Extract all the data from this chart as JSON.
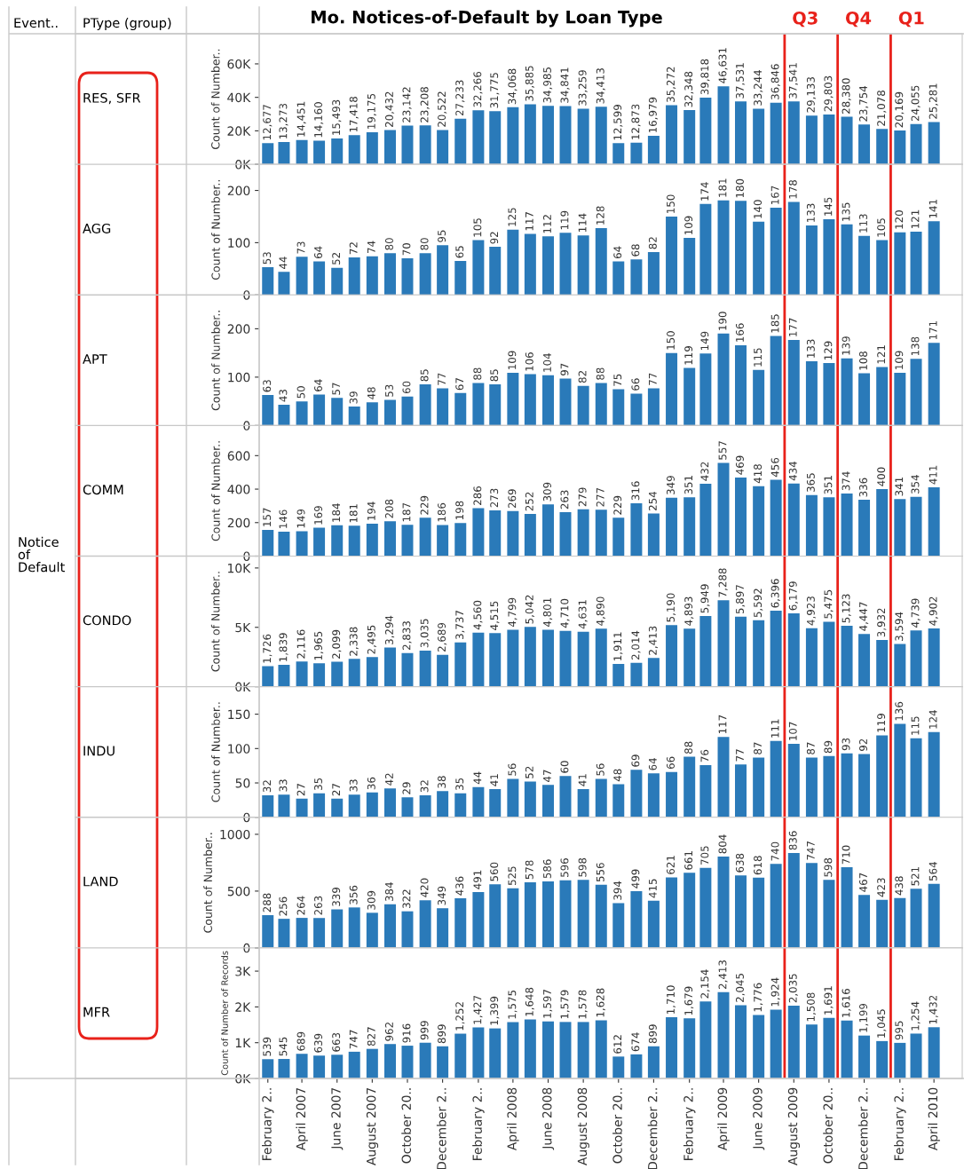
{
  "chart_data": [
    {
      "type": "bar",
      "title": "Mo. Notices-of-Default by Loan Type",
      "ylabel": "Count of Number..",
      "annotations": [
        "RES, SFR",
        "Event..",
        "PType (group)",
        "Notice of Default"
      ],
      "x": [
        "2007-02",
        "2007-03",
        "2007-04",
        "2007-05",
        "2007-06",
        "2007-07",
        "2007-08",
        "2007-09",
        "2007-10",
        "2007-11",
        "2007-12",
        "2008-01",
        "2008-02",
        "2008-03",
        "2008-04",
        "2008-05",
        "2008-06",
        "2008-07",
        "2008-08",
        "2008-09",
        "2008-10",
        "2008-11",
        "2008-12",
        "2009-01",
        "2009-02",
        "2009-03",
        "2009-04",
        "2009-05",
        "2009-06",
        "2009-07",
        "2009-08",
        "2009-09",
        "2009-10",
        "2009-11",
        "2009-12",
        "2010-01",
        "2010-02",
        "2010-03",
        "2010-04"
      ],
      "values": [
        12677,
        13273,
        14451,
        14160,
        15493,
        17418,
        19175,
        20432,
        23142,
        23208,
        20522,
        27233,
        32266,
        31775,
        34068,
        35885,
        34985,
        34841,
        33259,
        34413,
        12599,
        12873,
        16979,
        35272,
        32348,
        39818,
        46631,
        37531,
        33244,
        36846,
        37541,
        29133,
        29803,
        28380,
        23754,
        21078,
        20169,
        24055,
        25281
      ],
      "value_labels": [
        "12,677",
        "13,273",
        "14,451",
        "14,160",
        "15,493",
        "17,418",
        "19,175",
        "20,432",
        "23,142",
        "23,208",
        "20,522",
        "27,233",
        "32,266",
        "31,775",
        "34,068",
        "35,885",
        "34,985",
        "34,841",
        "33,259",
        "34,413",
        "12,599",
        "12,873",
        "16,979",
        "35,272",
        "32,348",
        "39,818",
        "46,631",
        "37,531",
        "33,244",
        "36,846",
        "37,541",
        "29,133",
        "29,803",
        "28,380",
        "23,754",
        "21,078",
        "20,169",
        "24,055",
        "25,281"
      ],
      "color": "#2a7ab9",
      "data_labels": true,
      "xlim": [
        "2007-01-17",
        "2010-05-20"
      ],
      "ylim": [
        0,
        78000
      ],
      "yticks": [
        {
          "value": 0,
          "label": "0K"
        },
        {
          "value": 20000,
          "label": "20K"
        },
        {
          "value": 40000,
          "label": "40K"
        },
        {
          "value": 60000,
          "label": "60K"
        }
      ],
      "tick_labels": "y",
      "ref_lines": [
        {
          "axis": "x",
          "value": "2009-07-16",
          "label": "Q3",
          "color": "#e8211a"
        },
        {
          "axis": "x",
          "value": "2009-10-16",
          "label": "Q4",
          "color": "#e8211a"
        },
        {
          "axis": "x",
          "value": "2010-01-16",
          "label": "Q1",
          "color": "#e8211a"
        }
      ]
    },
    {
      "type": "bar",
      "annotations": [
        "AGG"
      ],
      "ylabel": "Count of Number..",
      "x": [
        "2007-02",
        "2007-03",
        "2007-04",
        "2007-05",
        "2007-06",
        "2007-07",
        "2007-08",
        "2007-09",
        "2007-10",
        "2007-11",
        "2007-12",
        "2008-01",
        "2008-02",
        "2008-03",
        "2008-04",
        "2008-05",
        "2008-06",
        "2008-07",
        "2008-08",
        "2008-09",
        "2008-10",
        "2008-11",
        "2008-12",
        "2009-01",
        "2009-02",
        "2009-03",
        "2009-04",
        "2009-05",
        "2009-06",
        "2009-07",
        "2009-08",
        "2009-09",
        "2009-10",
        "2009-11",
        "2009-12",
        "2010-01",
        "2010-02",
        "2010-03",
        "2010-04"
      ],
      "values": [
        53,
        44,
        73,
        64,
        52,
        72,
        74,
        80,
        70,
        80,
        95,
        65,
        105,
        92,
        125,
        117,
        112,
        119,
        114,
        128,
        64,
        68,
        82,
        150,
        109,
        174,
        181,
        180,
        140,
        167,
        178,
        133,
        145,
        135,
        113,
        105,
        120,
        121,
        141
      ],
      "color": "#2a7ab9",
      "data_labels": true,
      "xlim": [
        "2007-01-17",
        "2010-05-20"
      ],
      "ylim": [
        0,
        250
      ],
      "yticks": [
        0,
        100,
        200
      ],
      "tick_labels": "y",
      "ref_lines": [
        {
          "axis": "x",
          "value": "2009-07-16",
          "color": "#e8211a"
        },
        {
          "axis": "x",
          "value": "2009-10-16",
          "color": "#e8211a"
        },
        {
          "axis": "x",
          "value": "2010-01-16",
          "color": "#e8211a"
        }
      ]
    },
    {
      "type": "bar",
      "annotations": [
        "APT"
      ],
      "ylabel": "Count of Number..",
      "x": [
        "2007-02",
        "2007-03",
        "2007-04",
        "2007-05",
        "2007-06",
        "2007-07",
        "2007-08",
        "2007-09",
        "2007-10",
        "2007-11",
        "2007-12",
        "2008-01",
        "2008-02",
        "2008-03",
        "2008-04",
        "2008-05",
        "2008-06",
        "2008-07",
        "2008-08",
        "2008-09",
        "2008-10",
        "2008-11",
        "2008-12",
        "2009-01",
        "2009-02",
        "2009-03",
        "2009-04",
        "2009-05",
        "2009-06",
        "2009-07",
        "2009-08",
        "2009-09",
        "2009-10",
        "2009-11",
        "2009-12",
        "2010-01",
        "2010-02",
        "2010-03",
        "2010-04"
      ],
      "values": [
        63,
        43,
        50,
        64,
        57,
        39,
        48,
        53,
        60,
        85,
        77,
        67,
        88,
        85,
        109,
        106,
        104,
        97,
        82,
        88,
        75,
        66,
        77,
        150,
        119,
        149,
        190,
        166,
        115,
        185,
        177,
        133,
        129,
        139,
        108,
        121,
        109,
        138,
        171
      ],
      "color": "#2a7ab9",
      "data_labels": true,
      "xlim": [
        "2007-01-17",
        "2010-05-20"
      ],
      "ylim": [
        0,
        270
      ],
      "yticks": [
        0,
        100,
        200
      ],
      "tick_labels": "y",
      "ref_lines": [
        {
          "axis": "x",
          "value": "2009-07-16",
          "color": "#e8211a"
        },
        {
          "axis": "x",
          "value": "2009-10-16",
          "color": "#e8211a"
        },
        {
          "axis": "x",
          "value": "2010-01-16",
          "color": "#e8211a"
        }
      ]
    },
    {
      "type": "bar",
      "annotations": [
        "COMM"
      ],
      "ylabel": "Count of Number..",
      "x": [
        "2007-02",
        "2007-03",
        "2007-04",
        "2007-05",
        "2007-06",
        "2007-07",
        "2007-08",
        "2007-09",
        "2007-10",
        "2007-11",
        "2007-12",
        "2008-01",
        "2008-02",
        "2008-03",
        "2008-04",
        "2008-05",
        "2008-06",
        "2008-07",
        "2008-08",
        "2008-09",
        "2008-10",
        "2008-11",
        "2008-12",
        "2009-01",
        "2009-02",
        "2009-03",
        "2009-04",
        "2009-05",
        "2009-06",
        "2009-07",
        "2009-08",
        "2009-09",
        "2009-10",
        "2009-11",
        "2009-12",
        "2010-01",
        "2010-02",
        "2010-03",
        "2010-04"
      ],
      "values": [
        157,
        146,
        149,
        169,
        184,
        181,
        194,
        208,
        187,
        229,
        186,
        198,
        286,
        273,
        269,
        252,
        309,
        263,
        279,
        277,
        229,
        316,
        254,
        349,
        351,
        432,
        557,
        469,
        418,
        456,
        434,
        365,
        351,
        374,
        336,
        400,
        341,
        354,
        411
      ],
      "color": "#2a7ab9",
      "data_labels": true,
      "xlim": [
        "2007-01-17",
        "2010-05-20"
      ],
      "ylim": [
        0,
        780
      ],
      "yticks": [
        0,
        200,
        400,
        600
      ],
      "tick_labels": "y",
      "ref_lines": [
        {
          "axis": "x",
          "value": "2009-07-16",
          "color": "#e8211a"
        },
        {
          "axis": "x",
          "value": "2009-10-16",
          "color": "#e8211a"
        },
        {
          "axis": "x",
          "value": "2010-01-16",
          "color": "#e8211a"
        }
      ]
    },
    {
      "type": "bar",
      "annotations": [
        "CONDO"
      ],
      "ylabel": "Count of Number..",
      "x": [
        "2007-02",
        "2007-03",
        "2007-04",
        "2007-05",
        "2007-06",
        "2007-07",
        "2007-08",
        "2007-09",
        "2007-10",
        "2007-11",
        "2007-12",
        "2008-01",
        "2008-02",
        "2008-03",
        "2008-04",
        "2008-05",
        "2008-06",
        "2008-07",
        "2008-08",
        "2008-09",
        "2008-10",
        "2008-11",
        "2008-12",
        "2009-01",
        "2009-02",
        "2009-03",
        "2009-04",
        "2009-05",
        "2009-06",
        "2009-07",
        "2009-08",
        "2009-09",
        "2009-10",
        "2009-11",
        "2009-12",
        "2010-01",
        "2010-02",
        "2010-03",
        "2010-04"
      ],
      "values": [
        1726,
        1839,
        2116,
        1965,
        2099,
        2338,
        2495,
        3294,
        2833,
        3035,
        2689,
        3737,
        4560,
        4515,
        4799,
        5042,
        4801,
        4710,
        4631,
        4890,
        1911,
        2014,
        2413,
        5190,
        4893,
        5949,
        7288,
        5897,
        5592,
        6396,
        6179,
        4923,
        5475,
        5123,
        4447,
        3932,
        3594,
        4739,
        4902
      ],
      "value_labels": [
        "1,726",
        "1,839",
        "2,116",
        "1,965",
        "2,099",
        "2,338",
        "2,495",
        "3,294",
        "2,833",
        "3,035",
        "2,689",
        "3,737",
        "4,560",
        "4,515",
        "4,799",
        "5,042",
        "4,801",
        "4,710",
        "4,631",
        "4,890",
        "1,911",
        "2,014",
        "2,413",
        "5,190",
        "4,893",
        "5,949",
        "7,288",
        "5,897",
        "5,592",
        "6,396",
        "6,179",
        "4,923",
        "5,475",
        "5,123",
        "4,447",
        "3,932",
        "3,594",
        "4,739",
        "4,902"
      ],
      "color": "#2a7ab9",
      "data_labels": true,
      "xlim": [
        "2007-01-17",
        "2010-05-20"
      ],
      "ylim": [
        0,
        11000
      ],
      "yticks": [
        {
          "value": 0,
          "label": "0K"
        },
        {
          "value": 5000,
          "label": "5K"
        },
        {
          "value": 10000,
          "label": "10K"
        }
      ],
      "tick_labels": "y",
      "ref_lines": [
        {
          "axis": "x",
          "value": "2009-07-16",
          "color": "#e8211a"
        },
        {
          "axis": "x",
          "value": "2009-10-16",
          "color": "#e8211a"
        },
        {
          "axis": "x",
          "value": "2010-01-16",
          "color": "#e8211a"
        }
      ]
    },
    {
      "type": "bar",
      "annotations": [
        "INDU"
      ],
      "ylabel": "Count of Number..",
      "x": [
        "2007-02",
        "2007-03",
        "2007-04",
        "2007-05",
        "2007-06",
        "2007-07",
        "2007-08",
        "2007-09",
        "2007-10",
        "2007-11",
        "2007-12",
        "2008-01",
        "2008-02",
        "2008-03",
        "2008-04",
        "2008-05",
        "2008-06",
        "2008-07",
        "2008-08",
        "2008-09",
        "2008-10",
        "2008-11",
        "2008-12",
        "2009-01",
        "2009-02",
        "2009-03",
        "2009-04",
        "2009-05",
        "2009-06",
        "2009-07",
        "2009-08",
        "2009-09",
        "2009-10",
        "2009-11",
        "2009-12",
        "2010-01",
        "2010-02",
        "2010-03",
        "2010-04"
      ],
      "values": [
        32,
        33,
        27,
        35,
        27,
        33,
        36,
        42,
        29,
        32,
        38,
        35,
        44,
        41,
        56,
        52,
        47,
        60,
        41,
        56,
        48,
        69,
        64,
        66,
        88,
        76,
        117,
        77,
        87,
        111,
        107,
        87,
        89,
        93,
        92,
        119,
        136,
        115,
        124
      ],
      "color": "#2a7ab9",
      "data_labels": true,
      "xlim": [
        "2007-01-17",
        "2010-05-20"
      ],
      "ylim": [
        0,
        190
      ],
      "yticks": [
        0,
        50,
        100,
        150
      ],
      "tick_labels": "y",
      "ref_lines": [
        {
          "axis": "x",
          "value": "2009-07-16",
          "color": "#e8211a"
        },
        {
          "axis": "x",
          "value": "2009-10-16",
          "color": "#e8211a"
        },
        {
          "axis": "x",
          "value": "2010-01-16",
          "color": "#e8211a"
        }
      ]
    },
    {
      "type": "bar",
      "annotations": [
        "LAND"
      ],
      "ylabel": "Count of Number..",
      "x": [
        "2007-02",
        "2007-03",
        "2007-04",
        "2007-05",
        "2007-06",
        "2007-07",
        "2007-08",
        "2007-09",
        "2007-10",
        "2007-11",
        "2007-12",
        "2008-01",
        "2008-02",
        "2008-03",
        "2008-04",
        "2008-05",
        "2008-06",
        "2008-07",
        "2008-08",
        "2008-09",
        "2008-10",
        "2008-11",
        "2008-12",
        "2009-01",
        "2009-02",
        "2009-03",
        "2009-04",
        "2009-05",
        "2009-06",
        "2009-07",
        "2009-08",
        "2009-09",
        "2009-10",
        "2009-11",
        "2009-12",
        "2010-01",
        "2010-02",
        "2010-03",
        "2010-04"
      ],
      "values": [
        288,
        256,
        264,
        263,
        339,
        356,
        309,
        384,
        322,
        420,
        349,
        436,
        491,
        560,
        525,
        578,
        586,
        596,
        598,
        556,
        394,
        499,
        415,
        621,
        661,
        705,
        804,
        638,
        618,
        740,
        836,
        747,
        598,
        710,
        467,
        423,
        438,
        521,
        564
      ],
      "color": "#2a7ab9",
      "data_labels": true,
      "xlim": [
        "2007-01-17",
        "2010-05-20"
      ],
      "ylim": [
        0,
        1150
      ],
      "yticks": [
        0,
        500,
        1000
      ],
      "tick_labels": "y",
      "ref_lines": [
        {
          "axis": "x",
          "value": "2009-07-16",
          "color": "#e8211a"
        },
        {
          "axis": "x",
          "value": "2009-10-16",
          "color": "#e8211a"
        },
        {
          "axis": "x",
          "value": "2010-01-16",
          "color": "#e8211a"
        }
      ]
    },
    {
      "type": "bar",
      "annotations": [
        "MFR"
      ],
      "ylabel": "Count of Number of Records",
      "x": [
        "2007-02",
        "2007-03",
        "2007-04",
        "2007-05",
        "2007-06",
        "2007-07",
        "2007-08",
        "2007-09",
        "2007-10",
        "2007-11",
        "2007-12",
        "2008-01",
        "2008-02",
        "2008-03",
        "2008-04",
        "2008-05",
        "2008-06",
        "2008-07",
        "2008-08",
        "2008-09",
        "2008-10",
        "2008-11",
        "2008-12",
        "2009-01",
        "2009-02",
        "2009-03",
        "2009-04",
        "2009-05",
        "2009-06",
        "2009-07",
        "2009-08",
        "2009-09",
        "2009-10",
        "2009-11",
        "2009-12",
        "2010-01",
        "2010-02",
        "2010-03",
        "2010-04"
      ],
      "values": [
        539,
        545,
        689,
        639,
        663,
        747,
        827,
        962,
        916,
        999,
        899,
        1252,
        1427,
        1399,
        1575,
        1648,
        1597,
        1579,
        1578,
        1628,
        612,
        674,
        899,
        1710,
        1679,
        2154,
        2413,
        2045,
        1776,
        1924,
        2035,
        1508,
        1691,
        1616,
        1199,
        1045,
        995,
        1254,
        1432
      ],
      "value_labels": [
        "539",
        "545",
        "689",
        "639",
        "663",
        "747",
        "827",
        "962",
        "916",
        "999",
        "899",
        "1,252",
        "1,427",
        "1,399",
        "1,575",
        "1,648",
        "1,597",
        "1,579",
        "1,578",
        "1,628",
        "612",
        "674",
        "899",
        "1,710",
        "1,679",
        "2,154",
        "2,413",
        "2,045",
        "1,776",
        "1,924",
        "2,035",
        "1,508",
        "1,691",
        "1,616",
        "1,199",
        "1,045",
        "995",
        "1,254",
        "1,432"
      ],
      "color": "#2a7ab9",
      "data_labels": true,
      "xlim": [
        "2007-01-17",
        "2010-05-20"
      ],
      "ylim": [
        0,
        3650
      ],
      "yticks": [
        {
          "value": 0,
          "label": "0K"
        },
        {
          "value": 1000,
          "label": "1K"
        },
        {
          "value": 2000,
          "label": "2K"
        },
        {
          "value": 3000,
          "label": "3K"
        }
      ],
      "xticks": [
        {
          "value": "2007-02",
          "label": "February 2.."
        },
        {
          "value": "2007-04",
          "label": "April 2007"
        },
        {
          "value": "2007-06",
          "label": "June 2007"
        },
        {
          "value": "2007-08",
          "label": "August 2007"
        },
        {
          "value": "2007-10",
          "label": "October 20.."
        },
        {
          "value": "2007-12",
          "label": "December 2.."
        },
        {
          "value": "2008-02",
          "label": "February 2.."
        },
        {
          "value": "2008-04",
          "label": "April 2008"
        },
        {
          "value": "2008-06",
          "label": "June 2008"
        },
        {
          "value": "2008-08",
          "label": "August 2008"
        },
        {
          "value": "2008-10",
          "label": "October 20.."
        },
        {
          "value": "2008-12",
          "label": "December 2.."
        },
        {
          "value": "2009-02",
          "label": "February 2.."
        },
        {
          "value": "2009-04",
          "label": "April 2009"
        },
        {
          "value": "2009-06",
          "label": "June 2009"
        },
        {
          "value": "2009-08",
          "label": "August 2009"
        },
        {
          "value": "2009-10",
          "label": "October 20.."
        },
        {
          "value": "2009-12",
          "label": "December 2.."
        },
        {
          "value": "2010-02",
          "label": "February 2.."
        },
        {
          "value": "2010-04",
          "label": "April 2010"
        }
      ],
      "ref_lines": [
        {
          "axis": "x",
          "value": "2009-07-16",
          "color": "#e8211a"
        },
        {
          "axis": "x",
          "value": "2009-10-16",
          "color": "#e8211a"
        },
        {
          "axis": "x",
          "value": "2010-01-16",
          "color": "#e8211a"
        }
      ]
    }
  ]
}
